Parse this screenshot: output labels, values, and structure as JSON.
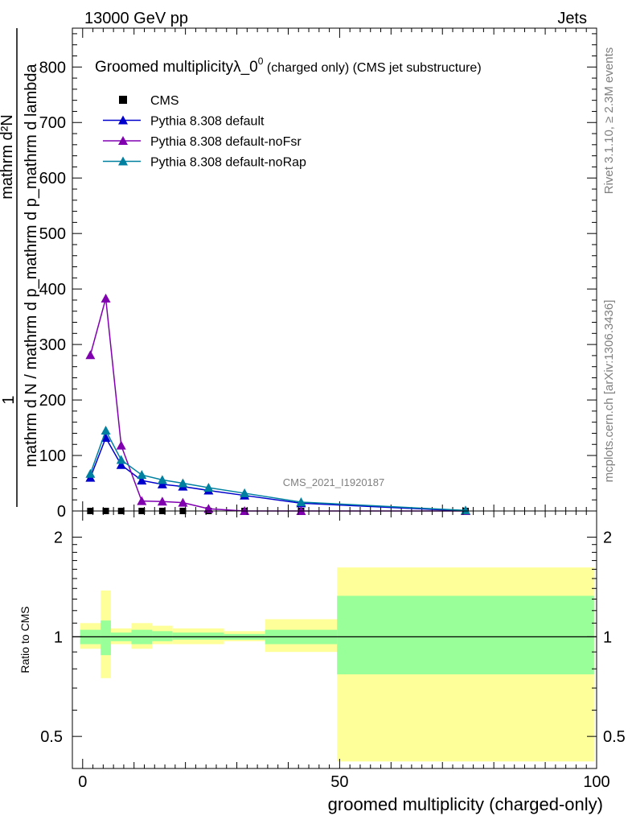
{
  "header": {
    "left": "13000 GeV pp",
    "right": "Jets"
  },
  "side_labels": {
    "rivet": "Rivet 3.1.10, ≥ 2.3M events",
    "mcplots": "mcplots.cern.ch [arXiv:1306.3436]"
  },
  "chart_data": [
    {
      "type": "line",
      "panel": "main",
      "title_main": "Groomed multiplicityλ_0",
      "title_sup": "0",
      "title_suffix": " (charged only) (CMS jet substructure)",
      "ylabel_numerator": "1",
      "ylabel_denominator": "mathrm d N / mathrm d p_mathrm d p_mathrm d lambda",
      "ylabel_top": "mathrm d²N",
      "ylim": [
        0,
        870
      ],
      "yticks": [
        0,
        100,
        200,
        300,
        400,
        500,
        600,
        700,
        800
      ],
      "xlim": [
        -2,
        100
      ],
      "watermark": "CMS_2021_I1920187",
      "legend_position": "top-left",
      "x": [
        1.5,
        4.5,
        7.5,
        11.5,
        15.5,
        19.5,
        24.5,
        31.5,
        42.5,
        74.5
      ],
      "series": [
        {
          "name": "CMS",
          "color": "#000000",
          "marker": "square",
          "values": [
            0,
            0,
            0,
            0,
            0,
            0,
            0,
            0,
            0,
            0
          ]
        },
        {
          "name": "Pythia 8.308 default",
          "color": "#0000cc",
          "marker": "triangle",
          "values": [
            60,
            132,
            83,
            55,
            48,
            44,
            37,
            28,
            14,
            0
          ]
        },
        {
          "name": "Pythia 8.308 default-noFsr",
          "color": "#8000b0",
          "marker": "triangle",
          "values": [
            281,
            383,
            118,
            18,
            17,
            15,
            4,
            0,
            0,
            0
          ]
        },
        {
          "name": "Pythia 8.308 default-noRap",
          "color": "#0080a0",
          "marker": "triangle",
          "values": [
            67,
            145,
            92,
            65,
            56,
            50,
            42,
            32,
            16,
            1
          ]
        }
      ]
    },
    {
      "type": "area",
      "panel": "ratio",
      "ylabel": "Ratio to CMS",
      "xlabel": "groomed multiplicity (charged-only)",
      "xlim": [
        -2,
        100
      ],
      "xticks": [
        0,
        50,
        100
      ],
      "ylim": [
        0.4,
        2.4
      ],
      "ytick_labels": [
        "0.5",
        "1",
        "2"
      ],
      "ytick_values": [
        0.5,
        1,
        2
      ],
      "colors": {
        "total": "#ffff99",
        "stat": "#99ff99",
        "line": "#000000"
      },
      "bins": [
        {
          "x": [
            -0.5,
            3.5
          ],
          "stat": [
            0.95,
            1.05
          ],
          "total": [
            0.92,
            1.1
          ]
        },
        {
          "x": [
            3.5,
            5.5
          ],
          "stat": [
            0.88,
            1.12
          ],
          "total": [
            0.75,
            1.38
          ]
        },
        {
          "x": [
            5.5,
            9.5
          ],
          "stat": [
            0.97,
            1.03
          ],
          "total": [
            0.95,
            1.06
          ]
        },
        {
          "x": [
            9.5,
            13.5
          ],
          "stat": [
            0.95,
            1.05
          ],
          "total": [
            0.92,
            1.1
          ]
        },
        {
          "x": [
            13.5,
            17.5
          ],
          "stat": [
            0.97,
            1.04
          ],
          "total": [
            0.95,
            1.08
          ]
        },
        {
          "x": [
            17.5,
            27.5
          ],
          "stat": [
            0.98,
            1.03
          ],
          "total": [
            0.95,
            1.06
          ]
        },
        {
          "x": [
            27.5,
            35.5
          ],
          "stat": [
            0.98,
            1.02
          ],
          "total": [
            0.97,
            1.04
          ]
        },
        {
          "x": [
            35.5,
            49.5
          ],
          "stat": [
            0.95,
            1.05
          ],
          "total": [
            0.9,
            1.13
          ]
        },
        {
          "x": [
            49.5,
            99.5
          ],
          "stat": [
            0.77,
            1.33
          ],
          "total": [
            0.42,
            1.62
          ]
        }
      ]
    }
  ]
}
